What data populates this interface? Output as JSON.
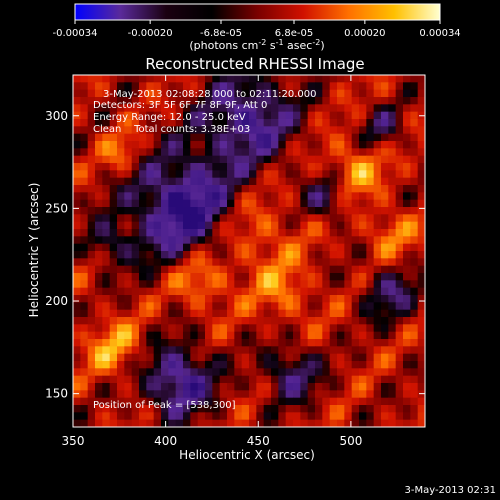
{
  "colorbar": {
    "tick_labels": [
      "-0.00034",
      "-0.00020",
      "-6.8e-05",
      "6.8e-05",
      "0.00020",
      "0.00034"
    ],
    "tick_values": [
      -0.00034,
      -0.0002,
      -6.8e-05,
      6.8e-05,
      0.0002,
      0.00034
    ],
    "range": [
      -0.00034,
      0.00034
    ],
    "unit_label": "(photons cm",
    "unit_exp1": "-2",
    "unit_mid": " s",
    "unit_exp2": "-1",
    "unit_mid2": " asec",
    "unit_exp3": "-2",
    "unit_end": ")",
    "colors": [
      "#0000ff",
      "#5a2a9a",
      "#1a0010",
      "#000000",
      "#7a0000",
      "#d01000",
      "#ff7000",
      "#ffc000",
      "#ffffd0"
    ]
  },
  "chart_data": {
    "type": "heatmap",
    "title": "Reconstructed RHESSI Image",
    "xlabel": "Heliocentric X (arcsec)",
    "ylabel": "Heliocentric Y (arcsec)",
    "xlim": [
      350,
      540
    ],
    "ylim": [
      132,
      322
    ],
    "x_ticks": [
      350,
      400,
      450,
      500
    ],
    "y_ticks": [
      150,
      200,
      250,
      300
    ],
    "annotations": [
      "3-May-2013 02:08:28.000 to 02:11:20.000",
      "Detectors: 3F 5F 6F 7F 8F 9F, Att 0",
      "Energy Range: 12.0 - 25.0 keV",
      "Clean    Total counts: 3.38E+03"
    ],
    "peak_label": "Position of Peak = [538,300]",
    "peak_position": [
      538,
      300
    ],
    "grid": false
  },
  "footer": {
    "timestamp": "3-May-2013 02:31"
  }
}
